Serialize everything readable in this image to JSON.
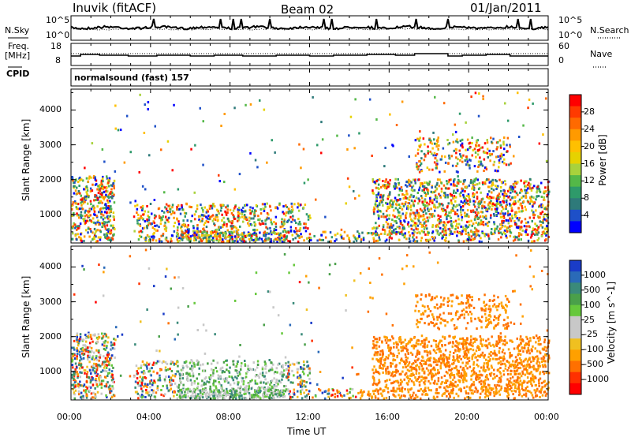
{
  "header": {
    "station": "Inuvik (fitACF)",
    "beam": "Beam 02",
    "date": "01/Jan/2011"
  },
  "noise_panel": {
    "left_label": "N.Sky",
    "left_ticks": [
      "10^5",
      "10^0"
    ],
    "right_label": "N.Search",
    "right_ticks": [
      "10^5",
      "10^0"
    ]
  },
  "freq_panel": {
    "left_label_1": "Freq.",
    "left_label_2": "[MHz]",
    "left_ticks": [
      "18",
      "8"
    ],
    "right_label": "Nave",
    "right_ticks": [
      "60",
      "0"
    ],
    "cpid_label": "CPID",
    "cpid_text": "normalsound (fast) 157"
  },
  "chart_data": [
    {
      "type": "heatmap",
      "name": "power",
      "ylabel": "Slant Range [km]",
      "yticks": [
        "4000",
        "3000",
        "2000",
        "1000"
      ],
      "ylim": [
        180,
        4600
      ],
      "colorbar_label": "Power [dB]",
      "colorbar_ticks": [
        "28",
        "24",
        "20",
        "16",
        "12",
        "8",
        "4"
      ],
      "colorbar_colors": [
        "#ff0000",
        "#ff3a00",
        "#ff6a00",
        "#ff9a00",
        "#ffc000",
        "#e6d200",
        "#a8d23c",
        "#54b848",
        "#2e9a6a",
        "#2e7a7a",
        "#1e50c8",
        "#0000ff"
      ],
      "xticks": [
        "00:00",
        "04:00",
        "08:00",
        "12:00",
        "16:00",
        "20:00",
        "00:00"
      ]
    },
    {
      "type": "heatmap",
      "name": "velocity",
      "ylabel": "Slant Range [km]",
      "yticks": [
        "4000",
        "3000",
        "2000",
        "1000"
      ],
      "ylim": [
        180,
        4600
      ],
      "colorbar_label": "Velocity [m s^-1]",
      "colorbar_ticks": [
        "1000",
        "500",
        "100",
        "25",
        "-25",
        "-100",
        "-500",
        "-1000"
      ],
      "colorbar_colors": [
        "#1a3cc8",
        "#2a6ab8",
        "#3a8a7a",
        "#4aa04a",
        "#66c83c",
        "#c8c8c8",
        "#c8c8c8",
        "#f0c020",
        "#ffa000",
        "#ff7000",
        "#ff3000",
        "#ff0000"
      ],
      "xticks": [
        "00:00",
        "04:00",
        "08:00",
        "12:00",
        "16:00",
        "20:00",
        "00:00"
      ],
      "xlabel": "Time UT"
    }
  ]
}
